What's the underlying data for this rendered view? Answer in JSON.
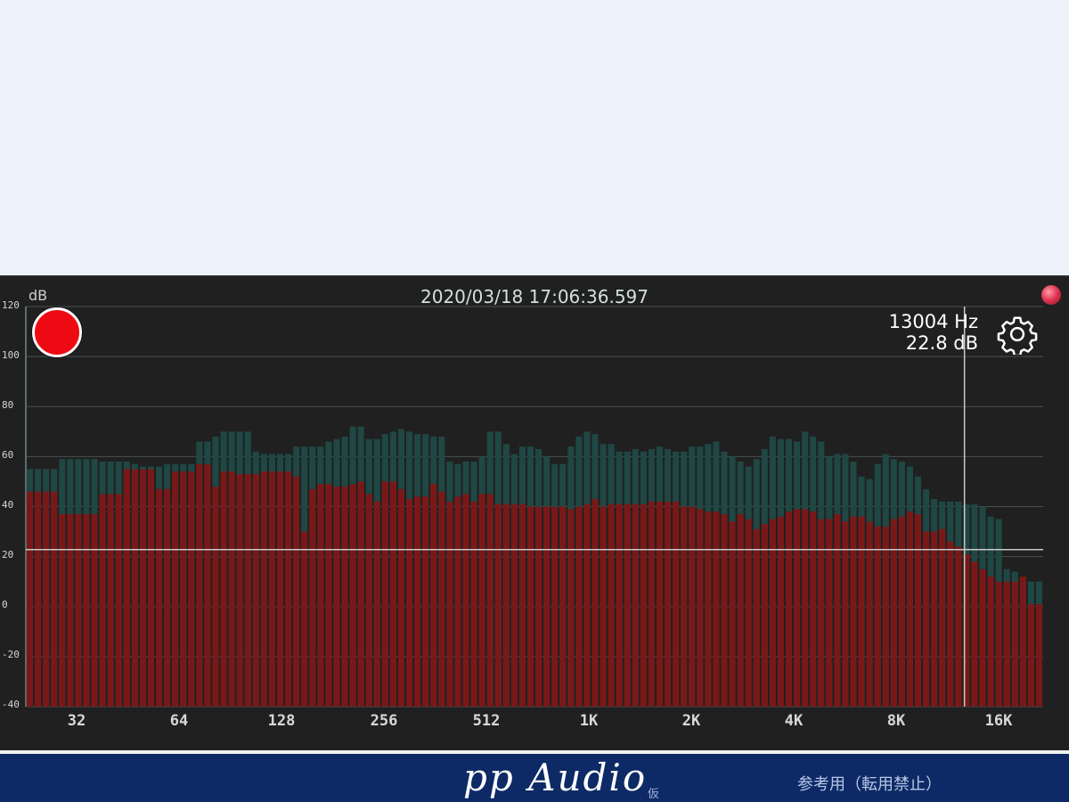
{
  "analyzer": {
    "y_unit": "dB",
    "timestamp": "2020/03/18 17:06:36.597",
    "cursor_frequency": "13004",
    "cursor_frequency_unit": "Hz",
    "cursor_level": "22.8",
    "cursor_level_unit": "dB",
    "record_button": "record",
    "settings_icon": "gear-icon",
    "status_indicator": "status-dot",
    "colors": {
      "current": "#7a1818",
      "peak": "#1f4744",
      "cursor": "#c8c8c8",
      "record": "#ee0a12"
    }
  },
  "banner": {
    "brand": "pp Audio",
    "brand_sub": "仮",
    "notice": "参考用（転用禁止）"
  },
  "chart_data": {
    "type": "bar",
    "xlabel": "",
    "ylabel": "dB",
    "ylim": [
      -40,
      120
    ],
    "yticks": [
      "120",
      "100",
      "80",
      "60",
      "40",
      "20",
      "0",
      "-20",
      "-40"
    ],
    "xticks": [
      "32",
      "64",
      "128",
      "256",
      "512",
      "1K",
      "2K",
      "4K",
      "8K",
      "16K"
    ],
    "x_scale": "log2 octave bands, 12 bars per octave",
    "cursor": {
      "frequency_hz": 13004,
      "level_db": 22.8
    },
    "series": [
      {
        "name": "",
        "values": [
          46,
          46,
          46,
          46,
          37,
          37,
          37,
          37,
          37,
          45,
          45,
          45,
          55,
          55,
          55,
          55,
          47,
          47,
          54,
          54,
          54,
          57,
          57,
          48,
          54,
          54,
          53,
          53,
          53,
          54,
          54,
          54,
          54,
          52,
          30,
          47,
          49,
          49,
          48,
          48,
          49,
          50,
          45,
          42,
          50,
          50,
          47,
          43,
          44,
          44,
          49,
          46,
          42,
          44,
          45,
          42,
          45,
          45,
          41,
          41,
          41,
          41,
          40,
          40,
          40,
          40,
          40,
          39,
          40,
          41,
          43,
          40,
          41,
          41,
          41,
          41,
          41,
          42,
          42,
          42,
          42,
          40,
          40,
          39,
          38,
          38,
          37,
          34,
          37,
          35,
          31,
          33,
          35,
          36,
          38,
          39,
          39,
          38,
          35,
          35,
          37,
          34,
          36,
          36,
          34,
          32,
          32,
          35,
          36,
          38,
          37,
          30,
          30,
          31,
          26,
          24,
          21,
          18,
          15,
          12,
          10,
          10,
          10,
          12,
          1,
          1
        ]
      },
      {
        "name": "",
        "values": [
          55,
          55,
          55,
          55,
          59,
          59,
          59,
          59,
          59,
          58,
          58,
          58,
          58,
          57,
          56,
          56,
          56,
          57,
          57,
          57,
          57,
          66,
          66,
          68,
          70,
          70,
          70,
          70,
          62,
          61,
          61,
          61,
          61,
          64,
          64,
          64,
          64,
          66,
          67,
          68,
          72,
          72,
          67,
          67,
          69,
          70,
          71,
          70,
          69,
          69,
          68,
          68,
          58,
          57,
          58,
          58,
          60,
          70,
          70,
          65,
          61,
          64,
          64,
          63,
          60,
          57,
          57,
          64,
          68,
          70,
          69,
          65,
          65,
          62,
          62,
          63,
          62,
          63,
          64,
          63,
          62,
          62,
          64,
          64,
          65,
          66,
          62,
          60,
          58,
          56,
          59,
          63,
          68,
          67,
          67,
          66,
          70,
          68,
          66,
          60,
          61,
          61,
          58,
          52,
          51,
          57,
          61,
          59,
          58,
          56,
          52,
          47,
          43,
          42,
          42,
          42,
          41,
          41,
          40,
          36,
          35,
          15,
          14,
          10,
          10,
          10
        ]
      }
    ]
  }
}
